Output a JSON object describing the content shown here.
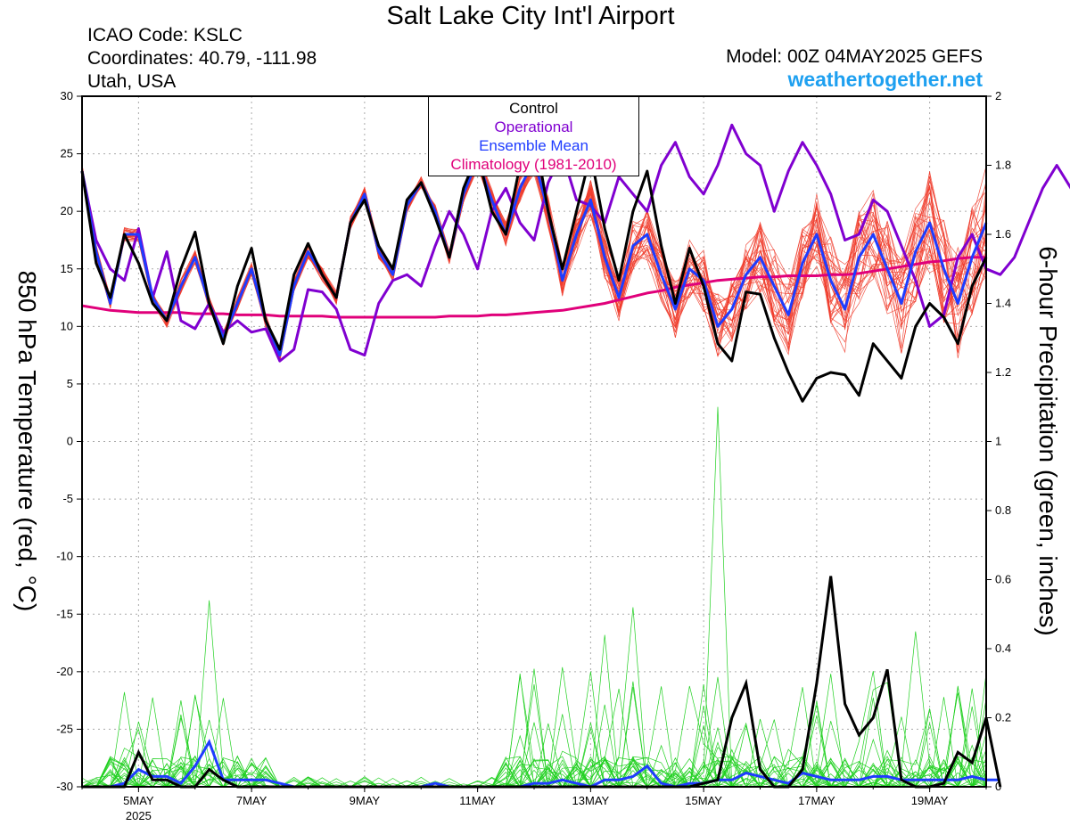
{
  "header": {
    "title": "Salt Lake City Int'l Airport",
    "icao": "ICAO Code: KSLC",
    "coords": "Coordinates: 40.79, -111.98",
    "region": "Utah, USA",
    "model": "Model: 00Z 04MAY2025 GEFS",
    "site": "weathertogether.net"
  },
  "colors": {
    "control": "#000000",
    "operational": "#8000d0",
    "ensemble_mean": "#1e3cff",
    "climatology": "#e0007a",
    "members_temp": "#f03c2c",
    "members_precip": "#20d020",
    "site": "#1ea0f0"
  },
  "chart_data": {
    "type": "line",
    "x_axis": {
      "tick_labels": [
        "5MAY",
        "7MAY",
        "9MAY",
        "11MAY",
        "13MAY",
        "15MAY",
        "17MAY",
        "19MAY"
      ],
      "year_label": "2025",
      "start": "2025-05-04 00Z",
      "end": "2025-05-20 06Z",
      "interval_hours": 6
    },
    "y_left": {
      "label": "850 hPa Temperature (red, °C)",
      "min": -30,
      "max": 30,
      "ticks": [
        30,
        25,
        20,
        15,
        10,
        5,
        0,
        -5,
        -10,
        -15,
        -20,
        -25,
        -30
      ]
    },
    "y_right": {
      "label": "6-hour Precipitation (green, inches)",
      "min": 0,
      "max": 2,
      "ticks": [
        "2",
        "1.8",
        "1.6",
        "1.4",
        "1.2",
        "1",
        "0.8",
        "0.6",
        "0.4",
        "0.2",
        "0"
      ]
    },
    "legend": [
      "Control",
      "Operational",
      "Ensemble Mean",
      "Climatology (1981-2010)"
    ],
    "grid": true,
    "series_temp": [
      {
        "name": "Control",
        "values": [
          23.5,
          15.5,
          12.5,
          18.0,
          15.5,
          12.0,
          10.5,
          15.0,
          18.2,
          12.0,
          8.5,
          13.5,
          16.8,
          10.5,
          8.0,
          14.5,
          17.2,
          14.5,
          12.5,
          19.0,
          21.0,
          17.0,
          15.0,
          21.0,
          22.5,
          19.5,
          16.0,
          22.0,
          25.0,
          20.0,
          18.0,
          24.0,
          27.0,
          20.0,
          15.0,
          20.0,
          25.0,
          18.5,
          14.0,
          20.0,
          23.5,
          17.0,
          12.0,
          16.8,
          13.5,
          8.5,
          7.0,
          13.0,
          12.8,
          9.0,
          6.0,
          3.5,
          5.5,
          6.0,
          5.8,
          4.0,
          8.5,
          7.0,
          5.5,
          10.0,
          12.0,
          10.8,
          8.5,
          13.5,
          16.0
        ]
      },
      {
        "name": "Operational",
        "values": [
          23.5,
          17.5,
          15.0,
          14.0,
          18.5,
          12.5,
          16.5,
          10.5,
          9.8,
          12.0,
          9.5,
          10.5,
          9.5,
          9.8,
          7.0,
          8.0,
          13.2,
          13.0,
          11.5,
          8.0,
          7.5,
          12.0,
          14.0,
          14.5,
          13.5,
          17.0,
          20.0,
          18.0,
          15.0,
          20.0,
          22.0,
          19.0,
          17.5,
          22.5,
          25.0,
          21.0,
          20.5,
          19.0,
          23.0,
          21.5,
          20.0,
          24.0,
          26.0,
          23.0,
          21.5,
          24.0,
          27.5,
          25.0,
          24.0,
          20.0,
          23.5,
          26.0,
          24.0,
          21.5,
          17.5,
          18.0,
          21.0,
          20.0,
          17.0,
          14.0,
          10.0,
          11.0,
          16.0,
          18.0,
          15.0,
          14.5,
          16.0,
          19.0,
          22.0,
          24.0,
          22.0,
          19.0,
          18.5,
          20.0,
          23.0,
          22.5,
          20.0,
          18.0,
          20.0,
          24.5,
          27.5
        ]
      },
      {
        "name": "Ensemble Mean",
        "values": [
          23.5,
          16.5,
          12.0,
          18.0,
          18.0,
          12.5,
          10.5,
          13.5,
          16.0,
          12.0,
          9.0,
          12.0,
          15.0,
          10.5,
          7.5,
          13.5,
          16.5,
          14.5,
          12.5,
          19.0,
          21.5,
          16.5,
          14.5,
          20.5,
          22.5,
          20.0,
          16.0,
          21.5,
          24.5,
          21.0,
          18.0,
          22.0,
          24.5,
          20.0,
          14.0,
          18.0,
          21.0,
          16.0,
          12.5,
          17.0,
          18.0,
          14.5,
          11.5,
          15.0,
          14.0,
          10.0,
          11.5,
          14.5,
          16.0,
          13.5,
          11.0,
          15.5,
          18.0,
          14.0,
          11.5,
          16.0,
          18.0,
          15.0,
          12.0,
          16.5,
          19.0,
          15.0,
          12.0,
          16.0,
          19.0
        ]
      },
      {
        "name": "Climatology (1981-2010)",
        "values": [
          11.8,
          11.6,
          11.4,
          11.3,
          11.2,
          11.2,
          11.2,
          11.2,
          11.1,
          11.1,
          11.1,
          11.0,
          11.0,
          11.0,
          10.9,
          10.9,
          10.9,
          10.9,
          10.8,
          10.8,
          10.8,
          10.8,
          10.8,
          10.8,
          10.8,
          10.8,
          10.9,
          10.9,
          10.9,
          11.0,
          11.0,
          11.1,
          11.2,
          11.3,
          11.4,
          11.6,
          11.8,
          12.0,
          12.3,
          12.6,
          12.9,
          13.1,
          13.4,
          13.6,
          13.8,
          14.0,
          14.1,
          14.2,
          14.3,
          14.3,
          14.4,
          14.4,
          14.4,
          14.5,
          14.5,
          14.6,
          14.8,
          15.0,
          15.2,
          15.4,
          15.6,
          15.7,
          15.9,
          16.0,
          16.0
        ]
      }
    ],
    "series_precip": [
      {
        "name": "Control",
        "values": [
          0,
          0,
          0,
          0,
          0.1,
          0.02,
          0.02,
          0,
          0,
          0.05,
          0.02,
          0,
          0,
          0,
          0,
          0,
          0,
          0,
          0,
          0,
          0,
          0,
          0,
          0,
          0,
          0,
          0,
          0,
          0,
          0,
          0,
          0,
          0,
          0,
          0,
          0,
          0,
          0,
          0,
          0,
          0,
          0,
          0,
          0,
          0.01,
          0.02,
          0.2,
          0.3,
          0.05,
          0,
          0,
          0.05,
          0.3,
          0.61,
          0.24,
          0.15,
          0.2,
          0.34,
          0.02,
          0,
          0,
          0.01,
          0.1,
          0.07,
          0.2,
          0
        ]
      },
      {
        "name": "Ensemble Mean",
        "values": [
          0,
          0,
          0,
          0.01,
          0.05,
          0.03,
          0.03,
          0.01,
          0.06,
          0.13,
          0.02,
          0.02,
          0.02,
          0.02,
          0.01,
          0,
          0,
          0,
          0,
          0,
          0,
          0,
          0,
          0,
          0,
          0.01,
          0,
          0,
          0,
          0,
          0,
          0,
          0.01,
          0.01,
          0.02,
          0.01,
          0,
          0.02,
          0.02,
          0.03,
          0.06,
          0.01,
          0,
          0.01,
          0.01,
          0.02,
          0.02,
          0.04,
          0.03,
          0.02,
          0.01,
          0.04,
          0.03,
          0.02,
          0.02,
          0.02,
          0.03,
          0.03,
          0.02,
          0.02,
          0.02,
          0.02,
          0.02,
          0.03,
          0.02,
          0.02
        ]
      },
      {
        "name": "Ensemble Members",
        "values": []
      }
    ]
  },
  "annotations": {}
}
